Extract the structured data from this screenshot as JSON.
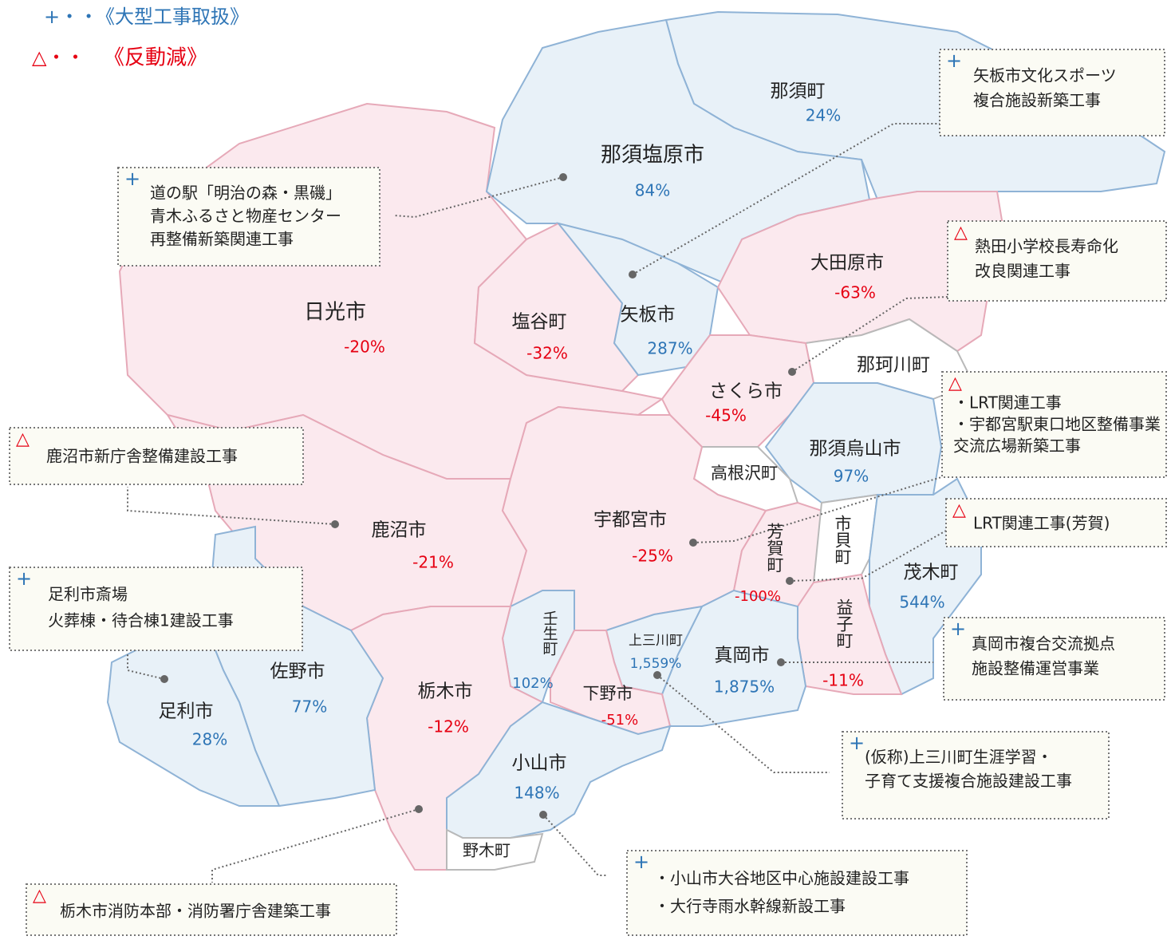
{
  "legend": [
    {
      "symbol": "+・・",
      "label": "《大型工事取扱》"
    },
    {
      "symbol": "△・・",
      "label": "《反動減》"
    }
  ],
  "regions": [
    {
      "name": "那須町",
      "change": "24%"
    },
    {
      "name": "那須塩原市",
      "change": "84%"
    },
    {
      "name": "日光市",
      "change": "-20%"
    },
    {
      "name": "塩谷町",
      "change": "-32%"
    },
    {
      "name": "矢板市",
      "change": "287%"
    },
    {
      "name": "大田原市",
      "change": "-63%"
    },
    {
      "name": "那珂川町"
    },
    {
      "name": "さくら市",
      "change": "-45%"
    },
    {
      "name": "那須烏山市",
      "change": "97%"
    },
    {
      "name": "高根沢町"
    },
    {
      "name": "鹿沼市",
      "change": "-21%"
    },
    {
      "name": "宇都宮市",
      "change": "-25%"
    },
    {
      "name": "芳賀町",
      "change": "-100%"
    },
    {
      "name": "市貝町"
    },
    {
      "name": "茂木町",
      "change": "544%"
    },
    {
      "name": "益子町",
      "change": "-11%"
    },
    {
      "name": "壬生町",
      "change": "102%"
    },
    {
      "name": "上三川町",
      "change": "1,559%"
    },
    {
      "name": "真岡市",
      "change": "1,875%"
    },
    {
      "name": "佐野市",
      "change": "77%"
    },
    {
      "name": "足利市",
      "change": "28%"
    },
    {
      "name": "栃木市",
      "change": "-12%"
    },
    {
      "name": "下野市",
      "change": "-51%"
    },
    {
      "name": "小山市",
      "change": "148%"
    },
    {
      "name": "野木町"
    }
  ],
  "callouts": [
    {
      "marker": "+",
      "lines": [
        "矢板市文化スポーツ",
        "複合施設新築工事"
      ]
    },
    {
      "marker": "+",
      "lines": [
        "道の駅「明治の森・黒磯」",
        "青木ふるさと物産センター",
        "再整備新築関連工事"
      ]
    },
    {
      "marker": "△",
      "lines": [
        "熱田小学校長寿命化",
        "改良関連工事"
      ]
    },
    {
      "marker": "△",
      "lines": [
        "・LRT関連工事",
        "・宇都宮駅東口地区整備事業",
        "交流広場新築工事"
      ]
    },
    {
      "marker": "△",
      "lines": [
        "鹿沼市新庁舎整備建設工事"
      ]
    },
    {
      "marker": "△",
      "lines": [
        "LRT関連工事(芳賀)"
      ]
    },
    {
      "marker": "+",
      "lines": [
        "足利市斎場",
        "火葬棟・待合棟1建設工事"
      ]
    },
    {
      "marker": "+",
      "lines": [
        "真岡市複合交流拠点",
        "施設整備運営事業"
      ]
    },
    {
      "marker": "+",
      "lines": [
        "(仮称)上三川町生涯学習・",
        "子育て支援複合施設建設工事"
      ]
    },
    {
      "marker": "+",
      "lines": [
        "・小山市大谷地区中心施設建設工事",
        "・大行寺雨水幹線新設工事"
      ]
    },
    {
      "marker": "△",
      "lines": [
        "栃木市消防本部・消防署庁舎建築工事"
      ]
    }
  ]
}
